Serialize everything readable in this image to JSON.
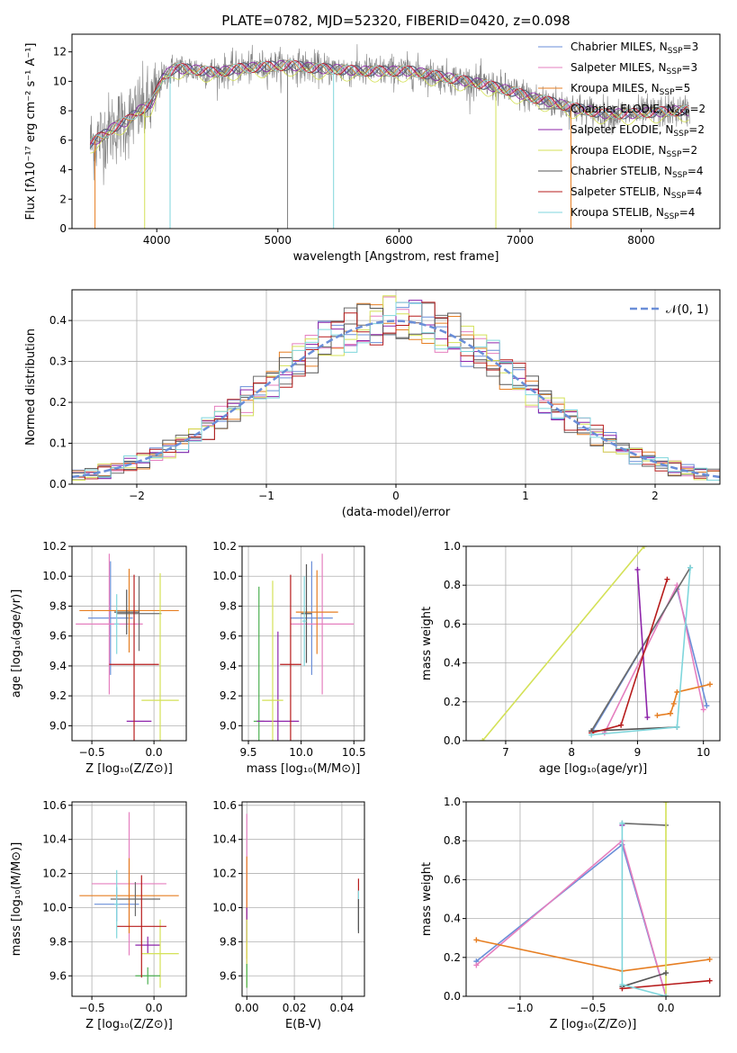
{
  "figure": {
    "title": "PLATE=0782, MJD=52320, FIBERID=0420, z=0.098",
    "series_names": [
      "Chabrier MILES, N_SSP=3",
      "Salpeter MILES, N_SSP=3",
      "Kroupa MILES, N_SSP=5",
      "Chabrier ELODIE, N_SSP=2",
      "Salpeter ELODIE, N_SSP=2",
      "Kroupa ELODIE, N_SSP=2",
      "Chabrier STELIB, N_SSP=4",
      "Salpeter STELIB, N_SSP=4",
      "Kroupa STELIB, N_SSP=4"
    ],
    "series_colors": [
      "#6a8ed8",
      "#e57fbf",
      "#e67e22",
      "#6b6b6b",
      "#8e24aa",
      "#d4e157",
      "#555555",
      "#b71c1c",
      "#7fd6dc"
    ]
  },
  "chart_data": [
    {
      "id": "spectrum",
      "type": "line",
      "xlabel": "wavelength [Angstrom, rest frame]",
      "ylabel": "Flux [fλ10⁻¹⁷ erg cm⁻² s⁻¹ A⁻¹]",
      "xlim": [
        3300,
        8650
      ],
      "ylim": [
        0,
        13.2
      ],
      "xticks": [
        4000,
        5000,
        6000,
        7000,
        8000
      ],
      "yticks": [
        0,
        2,
        4,
        6,
        8,
        10,
        12
      ],
      "grid": false,
      "legend_position": "top-right",
      "legend": [
        {
          "label": "Chabrier MILES, N",
          "sub": "SSP",
          "suffix": "=3",
          "color": "#6a8ed8"
        },
        {
          "label": "Salpeter MILES, N",
          "sub": "SSP",
          "suffix": "=3",
          "color": "#e57fbf"
        },
        {
          "label": "Kroupa MILES, N",
          "sub": "SSP",
          "suffix": "=5",
          "color": "#e67e22"
        },
        {
          "label": "Chabrier ELODIE, N",
          "sub": "SSP",
          "suffix": "=2",
          "color": "#6b6b6b"
        },
        {
          "label": "Salpeter ELODIE, N",
          "sub": "SSP",
          "suffix": "=2",
          "color": "#8e24aa"
        },
        {
          "label": "Kroupa ELODIE, N",
          "sub": "SSP",
          "suffix": "=2",
          "color": "#d4e157"
        },
        {
          "label": "Chabrier STELIB, N",
          "sub": "SSP",
          "suffix": "=4",
          "color": "#555555"
        },
        {
          "label": "Salpeter STELIB, N",
          "sub": "SSP",
          "suffix": "=4",
          "color": "#b71c1c"
        },
        {
          "label": "Kroupa STELIB, N",
          "sub": "SSP",
          "suffix": "=4",
          "color": "#7fd6dc"
        }
      ],
      "continuum": {
        "x": [
          3450,
          3550,
          3650,
          3750,
          3850,
          3950,
          4050,
          4150,
          4300,
          4500,
          4700,
          4900,
          5100,
          5300,
          5500,
          5700,
          5900,
          6100,
          6300,
          6500,
          6700,
          6900,
          7100,
          7300,
          7500,
          7700,
          7900,
          8100,
          8300,
          8400
        ],
        "y": [
          5.8,
          6.3,
          6.9,
          7.3,
          8.0,
          8.4,
          10.3,
          10.9,
          10.8,
          10.6,
          10.9,
          11.0,
          11.1,
          10.9,
          10.8,
          10.7,
          10.7,
          10.7,
          10.4,
          10.1,
          9.8,
          9.4,
          8.9,
          8.5,
          8.1,
          7.8,
          7.8,
          7.9,
          8.0,
          8.0
        ]
      }
    },
    {
      "id": "residuals",
      "type": "histogram",
      "xlabel": "(data-model)/error",
      "ylabel": "Normed distribution",
      "xlim": [
        -2.5,
        2.5
      ],
      "ylim": [
        0,
        0.475
      ],
      "xticks": [
        -2,
        -1,
        0,
        1,
        2
      ],
      "yticks": [
        0.0,
        0.1,
        0.2,
        0.3,
        0.4
      ],
      "grid": true,
      "legend": [
        {
          "label": "𝒩(0, 1)",
          "color": "#6a8ed8",
          "style": "dashed"
        }
      ],
      "legend_position": "top-right",
      "bin_width": 0.1,
      "reference_curve": "normal pdf, mean 0, sd 1"
    },
    {
      "id": "age_vs_Z",
      "type": "scatter",
      "xlabel": "Z [log₁₀(Z/Z⊙)]",
      "ylabel": "age  [log₁₀(age/yr)]",
      "xlim": [
        -0.66,
        0.26
      ],
      "ylim": [
        8.9,
        10.2
      ],
      "xticks": [
        -0.5,
        0.0
      ],
      "yticks": [
        9.0,
        9.2,
        9.4,
        9.6,
        9.8,
        10.0,
        10.2
      ],
      "grid": true,
      "points": [
        {
          "x": -0.35,
          "y": 9.72,
          "xerr": 0.18,
          "yerr": 0.38,
          "color": "#6a8ed8"
        },
        {
          "x": -0.36,
          "y": 9.68,
          "xerr": 0.27,
          "yerr": 0.47,
          "color": "#e57fbf"
        },
        {
          "x": -0.2,
          "y": 9.77,
          "xerr": 0.4,
          "yerr": 0.28,
          "color": "#e67e22"
        },
        {
          "x": -0.12,
          "y": 9.75,
          "xerr": 0.18,
          "yerr": 0.25,
          "color": "#6b6b6b"
        },
        {
          "x": -0.12,
          "y": 9.03,
          "xerr": 0.1,
          "yerr": 0.0,
          "color": "#8e24aa"
        },
        {
          "x": 0.05,
          "y": 9.17,
          "xerr": 0.15,
          "yerr": 0.85,
          "color": "#d4e157"
        },
        {
          "x": -0.22,
          "y": 9.76,
          "xerr": 0.1,
          "yerr": 0.15,
          "color": "#555555"
        },
        {
          "x": -0.16,
          "y": 9.41,
          "xerr": 0.2,
          "yerr": 0.6,
          "color": "#b71c1c"
        },
        {
          "x": -0.3,
          "y": 9.68,
          "xerr": 0.02,
          "yerr": 0.2,
          "color": "#7fd6dc"
        }
      ]
    },
    {
      "id": "age_vs_mass",
      "type": "scatter",
      "xlabel": "mass [log₁₀(M/M⊙)]",
      "xlim": [
        9.44,
        10.6
      ],
      "ylim": [
        8.9,
        10.2
      ],
      "xticks": [
        9.5,
        10.0,
        10.5
      ],
      "yticks": [
        9.0,
        9.2,
        9.4,
        9.6,
        9.8,
        10.0,
        10.2
      ],
      "grid": true,
      "points": [
        {
          "x": 10.1,
          "y": 9.72,
          "xerr": 0.2,
          "yerr": 0.38,
          "color": "#6a8ed8"
        },
        {
          "x": 10.2,
          "y": 9.68,
          "xerr": 0.3,
          "yerr": 0.47,
          "color": "#e57fbf"
        },
        {
          "x": 10.15,
          "y": 9.76,
          "xerr": 0.2,
          "yerr": 0.28,
          "color": "#e67e22"
        },
        {
          "x": 9.6,
          "y": 9.03,
          "xerr": 0.05,
          "yerr": 0.9,
          "color": "#4caf50"
        },
        {
          "x": 9.78,
          "y": 9.03,
          "xerr": 0.2,
          "yerr": 0.6,
          "color": "#8e24aa"
        },
        {
          "x": 9.73,
          "y": 9.17,
          "xerr": 0.1,
          "yerr": 0.8,
          "color": "#d4e157"
        },
        {
          "x": 10.05,
          "y": 9.75,
          "xerr": 0.05,
          "yerr": 0.33,
          "color": "#555555"
        },
        {
          "x": 9.9,
          "y": 9.41,
          "xerr": 0.1,
          "yerr": 0.6,
          "color": "#b71c1c"
        },
        {
          "x": 10.03,
          "y": 9.7,
          "xerr": 0.02,
          "yerr": 0.3,
          "color": "#7fd6dc"
        }
      ]
    },
    {
      "id": "mass_weight_vs_age",
      "type": "line",
      "xlabel": "age  [log₁₀(age/yr)]",
      "ylabel": "mass weight",
      "xlim": [
        6.4,
        10.25
      ],
      "ylim": [
        0.0,
        1.0
      ],
      "xticks": [
        7,
        8,
        9,
        10
      ],
      "yticks": [
        0.0,
        0.2,
        0.4,
        0.6,
        0.8,
        1.0
      ],
      "grid": true,
      "series": [
        {
          "name": "Chabrier MILES",
          "color": "#6a8ed8",
          "x": [
            8.3,
            9.6,
            10.05
          ],
          "y": [
            0.04,
            0.78,
            0.18
          ]
        },
        {
          "name": "Salpeter MILES",
          "color": "#e57fbf",
          "x": [
            8.5,
            9.6,
            10.0
          ],
          "y": [
            0.04,
            0.8,
            0.16
          ]
        },
        {
          "name": "Kroupa MILES",
          "color": "#e67e22",
          "x": [
            9.3,
            9.5,
            9.55,
            9.6,
            10.1
          ],
          "y": [
            0.13,
            0.14,
            0.19,
            0.25,
            0.29
          ]
        },
        {
          "name": "Chabrier ELODIE",
          "color": "#6b6b6b",
          "x": [
            8.3,
            9.8
          ],
          "y": [
            0.05,
            0.89
          ]
        },
        {
          "name": "Salpeter ELODIE",
          "color": "#8e24aa",
          "x": [
            9.0,
            9.15
          ],
          "y": [
            0.88,
            0.12
          ]
        },
        {
          "name": "Kroupa ELODIE",
          "color": "#d4e157",
          "x": [
            6.65,
            9.1
          ],
          "y": [
            0.0,
            1.0
          ]
        },
        {
          "name": "Chabrier STELIB",
          "color": "#555555",
          "x": [
            8.3,
            9.6
          ],
          "y": [
            0.05,
            0.07
          ]
        },
        {
          "name": "Salpeter STELIB",
          "color": "#b71c1c",
          "x": [
            8.3,
            8.75,
            9.45
          ],
          "y": [
            0.04,
            0.08,
            0.83
          ]
        },
        {
          "name": "Kroupa STELIB",
          "color": "#7fd6dc",
          "x": [
            8.3,
            9.6,
            9.8
          ],
          "y": [
            0.03,
            0.07,
            0.89
          ]
        }
      ]
    },
    {
      "id": "mass_vs_Z",
      "type": "scatter",
      "xlabel": "Z [log₁₀(Z/Z⊙)]",
      "ylabel": "mass [log₁₀(M/M⊙)]",
      "xlim": [
        -0.66,
        0.26
      ],
      "ylim": [
        9.48,
        10.62
      ],
      "xticks": [
        -0.5,
        0.0
      ],
      "yticks": [
        9.6,
        9.8,
        10.0,
        10.2,
        10.4,
        10.6
      ],
      "grid": true,
      "points": [
        {
          "x": -0.3,
          "y": 10.02,
          "xerr": 0.18,
          "yerr": 0.1,
          "color": "#6a8ed8"
        },
        {
          "x": -0.2,
          "y": 10.14,
          "xerr": 0.3,
          "yerr": 0.42,
          "color": "#e57fbf"
        },
        {
          "x": -0.2,
          "y": 10.07,
          "xerr": 0.4,
          "yerr": 0.22,
          "color": "#e67e22"
        },
        {
          "x": -0.15,
          "y": 10.05,
          "xerr": 0.2,
          "yerr": 0.1,
          "color": "#6b6b6b"
        },
        {
          "x": -0.05,
          "y": 9.78,
          "xerr": 0.1,
          "yerr": 0.05,
          "color": "#8e24aa"
        },
        {
          "x": 0.05,
          "y": 9.73,
          "xerr": 0.15,
          "yerr": 0.2,
          "color": "#d4e157"
        },
        {
          "x": -0.05,
          "y": 9.6,
          "xerr": 0.1,
          "yerr": 0.05,
          "color": "#4caf50"
        },
        {
          "x": -0.1,
          "y": 9.89,
          "xerr": 0.2,
          "yerr": 0.3,
          "color": "#b71c1c"
        },
        {
          "x": -0.3,
          "y": 10.02,
          "xerr": 0.02,
          "yerr": 0.2,
          "color": "#7fd6dc"
        }
      ]
    },
    {
      "id": "mass_vs_ebv",
      "type": "scatter",
      "xlabel": "E(B-V)",
      "xlim": [
        -0.002,
        0.0495
      ],
      "ylim": [
        9.48,
        10.62
      ],
      "xticks": [
        0.0,
        0.02,
        0.04
      ],
      "yticks": [
        9.6,
        9.8,
        10.0,
        10.2,
        10.4,
        10.6
      ],
      "grid": true,
      "points": [
        {
          "x": 0.0,
          "y": 10.1,
          "xerr": 0.0,
          "yerr": 0.45,
          "color": "#e57fbf"
        },
        {
          "x": 0.0,
          "y": 10.0,
          "xerr": 0.0,
          "yerr": 0.3,
          "color": "#e67e22"
        },
        {
          "x": 0.0,
          "y": 9.9,
          "xerr": 0.0,
          "yerr": 0.1,
          "color": "#8e24aa"
        },
        {
          "x": 0.0,
          "y": 9.73,
          "xerr": 0.0,
          "yerr": 0.2,
          "color": "#d4e157"
        },
        {
          "x": 0.0,
          "y": 9.6,
          "xerr": 0.0,
          "yerr": 0.07,
          "color": "#4caf50"
        },
        {
          "x": 0.047,
          "y": 10.02,
          "xerr": 0.0,
          "yerr": 0.15,
          "color": "#b71c1c"
        },
        {
          "x": 0.047,
          "y": 9.98,
          "xerr": 0.0,
          "yerr": 0.12,
          "color": "#7fd6dc"
        },
        {
          "x": 0.047,
          "y": 9.95,
          "xerr": 0.0,
          "yerr": 0.1,
          "color": "#555555"
        }
      ]
    },
    {
      "id": "mass_weight_vs_Z",
      "type": "line",
      "xlabel": "Z [log₁₀(Z/Z⊙)]",
      "ylabel": "mass weight",
      "xlim": [
        -1.37,
        0.37
      ],
      "ylim": [
        0.0,
        1.0
      ],
      "xticks": [
        -1.0,
        -0.5,
        0.0
      ],
      "yticks": [
        0.0,
        0.2,
        0.4,
        0.6,
        0.8,
        1.0
      ],
      "grid": true,
      "series": [
        {
          "name": "Chabrier MILES",
          "color": "#6a8ed8",
          "x": [
            -1.3,
            -0.3,
            0.0
          ],
          "y": [
            0.18,
            0.78,
            0.0
          ]
        },
        {
          "name": "Salpeter MILES",
          "color": "#e57fbf",
          "x": [
            -1.3,
            -0.3,
            0.0
          ],
          "y": [
            0.16,
            0.8,
            0.0
          ]
        },
        {
          "name": "Kroupa MILES",
          "color": "#e67e22",
          "x": [
            -1.3,
            -0.3,
            0.3
          ],
          "y": [
            0.29,
            0.13,
            0.19
          ]
        },
        {
          "name": "Chabrier ELODIE",
          "color": "#6b6b6b",
          "x": [
            -0.3,
            0.0
          ],
          "y": [
            0.89,
            0.88
          ]
        },
        {
          "name": "Salpeter ELODIE",
          "color": "#8e24aa",
          "x": [
            -0.3
          ],
          "y": [
            0.88
          ]
        },
        {
          "name": "Kroupa ELODIE",
          "color": "#d4e157",
          "x": [
            0.0,
            0.0
          ],
          "y": [
            0.0,
            1.0
          ]
        },
        {
          "name": "Chabrier STELIB",
          "color": "#555555",
          "x": [
            -0.3,
            0.0
          ],
          "y": [
            0.05,
            0.12
          ]
        },
        {
          "name": "Salpeter STELIB",
          "color": "#b71c1c",
          "x": [
            -0.3,
            0.3
          ],
          "y": [
            0.04,
            0.08
          ]
        },
        {
          "name": "Kroupa STELIB",
          "color": "#7fd6dc",
          "x": [
            -0.3,
            -0.3,
            0.0
          ],
          "y": [
            0.89,
            0.06,
            0.0
          ]
        }
      ]
    }
  ]
}
